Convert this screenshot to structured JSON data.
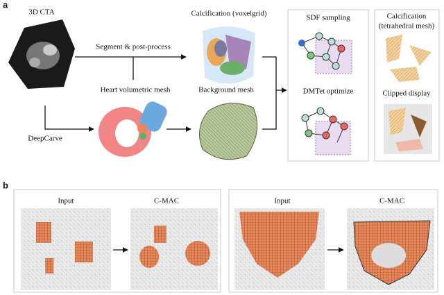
{
  "panel_a": {
    "label": "a",
    "input": "3D CTA",
    "segment": "Segment & post-process",
    "deepcarve": "DeepCarve",
    "voxelgrid": "Calcification (voxelgrid)",
    "heart_mesh": "Heart volumetric mesh",
    "background_mesh": "Background mesh",
    "sdf": "SDF sampling",
    "dmtet": "DMTet optimize",
    "output_title": [
      "Calcification",
      "(tetrahedral mesh)"
    ],
    "clipped": "Clipped display"
  },
  "panel_b": {
    "label": "b",
    "examples": [
      {
        "input": "Input",
        "output": "C-MAC"
      },
      {
        "input": "Input",
        "output": "C-MAC"
      }
    ]
  }
}
